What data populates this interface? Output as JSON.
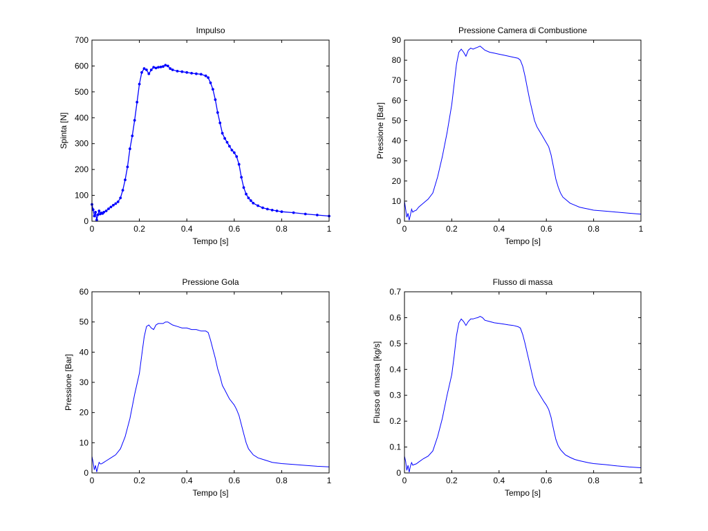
{
  "figure": {
    "background": "#ffffff"
  },
  "chart_data": [
    {
      "type": "line",
      "title": "Impulso",
      "xlabel": "Tempo [s]",
      "ylabel": "Spinta [N]",
      "xlim": [
        0,
        1
      ],
      "ylim": [
        0,
        700
      ],
      "xticks": [
        0,
        0.2,
        0.4,
        0.6,
        0.8,
        1
      ],
      "xtick_labels": [
        "0",
        "0.2",
        "0.4",
        "0.6",
        "0.8",
        "1"
      ],
      "yticks": [
        0,
        100,
        200,
        300,
        400,
        500,
        600,
        700
      ],
      "ytick_labels": [
        "0",
        "100",
        "200",
        "300",
        "400",
        "500",
        "600",
        "700"
      ],
      "markers": true,
      "grid": false,
      "series": [
        {
          "color": "#0000ff",
          "x": [
            0,
            0.005,
            0.01,
            0.015,
            0.02,
            0.025,
            0.03,
            0.035,
            0.04,
            0.045,
            0.05,
            0.06,
            0.07,
            0.08,
            0.09,
            0.1,
            0.11,
            0.12,
            0.13,
            0.14,
            0.15,
            0.16,
            0.17,
            0.18,
            0.19,
            0.2,
            0.21,
            0.22,
            0.23,
            0.24,
            0.25,
            0.26,
            0.27,
            0.28,
            0.29,
            0.3,
            0.31,
            0.32,
            0.33,
            0.34,
            0.36,
            0.38,
            0.4,
            0.42,
            0.44,
            0.46,
            0.48,
            0.49,
            0.5,
            0.51,
            0.52,
            0.53,
            0.54,
            0.55,
            0.56,
            0.57,
            0.58,
            0.59,
            0.6,
            0.61,
            0.62,
            0.63,
            0.64,
            0.65,
            0.66,
            0.67,
            0.68,
            0.7,
            0.72,
            0.74,
            0.76,
            0.78,
            0.8,
            0.85,
            0.9,
            0.95,
            1.0
          ],
          "y": [
            65,
            45,
            20,
            35,
            5,
            25,
            40,
            28,
            32,
            30,
            35,
            40,
            48,
            55,
            62,
            68,
            75,
            90,
            120,
            160,
            210,
            280,
            330,
            390,
            460,
            530,
            575,
            590,
            585,
            570,
            585,
            595,
            592,
            595,
            596,
            598,
            603,
            600,
            590,
            585,
            580,
            578,
            575,
            572,
            570,
            568,
            562,
            555,
            535,
            510,
            470,
            420,
            380,
            340,
            320,
            305,
            290,
            275,
            265,
            250,
            220,
            170,
            130,
            105,
            90,
            80,
            70,
            60,
            52,
            47,
            43,
            40,
            37,
            33,
            28,
            24,
            20
          ]
        }
      ]
    },
    {
      "type": "line",
      "title": "Pressione Camera di Combustione",
      "xlabel": "Tempo [s]",
      "ylabel": "Pressione [Bar]",
      "xlim": [
        0,
        1
      ],
      "ylim": [
        0,
        90
      ],
      "xticks": [
        0,
        0.2,
        0.4,
        0.6,
        0.8,
        1
      ],
      "xtick_labels": [
        "0",
        "0.2",
        "0.4",
        "0.6",
        "0.8",
        "1"
      ],
      "yticks": [
        0,
        10,
        20,
        30,
        40,
        50,
        60,
        70,
        80,
        90
      ],
      "ytick_labels": [
        "0",
        "10",
        "20",
        "30",
        "40",
        "50",
        "60",
        "70",
        "80",
        "90"
      ],
      "markers": false,
      "grid": false,
      "series": [
        {
          "color": "#0000ff",
          "x": [
            0,
            0.005,
            0.01,
            0.015,
            0.02,
            0.025,
            0.03,
            0.035,
            0.04,
            0.05,
            0.06,
            0.08,
            0.1,
            0.12,
            0.14,
            0.16,
            0.18,
            0.2,
            0.21,
            0.22,
            0.23,
            0.24,
            0.25,
            0.26,
            0.27,
            0.28,
            0.29,
            0.3,
            0.31,
            0.32,
            0.33,
            0.34,
            0.36,
            0.38,
            0.4,
            0.42,
            0.44,
            0.46,
            0.48,
            0.49,
            0.5,
            0.51,
            0.52,
            0.53,
            0.54,
            0.55,
            0.56,
            0.57,
            0.58,
            0.59,
            0.6,
            0.61,
            0.62,
            0.63,
            0.64,
            0.65,
            0.66,
            0.67,
            0.68,
            0.7,
            0.72,
            0.74,
            0.76,
            0.78,
            0.8,
            0.85,
            0.9,
            0.95,
            1.0
          ],
          "y": [
            10,
            6,
            2,
            4,
            0.5,
            3,
            6,
            4.5,
            5,
            5.5,
            7,
            9,
            11,
            14,
            22,
            32,
            44,
            58,
            68,
            78,
            84,
            85.5,
            84,
            82,
            85,
            86,
            85.5,
            86,
            86.5,
            87,
            86,
            85,
            84,
            83.5,
            83,
            82.5,
            82,
            81.5,
            81,
            80,
            77,
            72,
            66,
            60,
            55,
            50,
            47,
            45,
            43,
            41,
            39,
            37,
            33,
            27,
            21,
            17,
            14,
            12,
            11,
            9,
            8,
            7,
            6.5,
            6,
            5.5,
            5,
            4.5,
            4,
            3.5
          ]
        }
      ]
    },
    {
      "type": "line",
      "title": "Pressione Gola",
      "xlabel": "Tempo [s]",
      "ylabel": "Pressione [Bar]",
      "xlim": [
        0,
        1
      ],
      "ylim": [
        0,
        60
      ],
      "xticks": [
        0,
        0.2,
        0.4,
        0.6,
        0.8,
        1
      ],
      "xtick_labels": [
        "0",
        "0.2",
        "0.4",
        "0.6",
        "0.8",
        "1"
      ],
      "yticks": [
        0,
        10,
        20,
        30,
        40,
        50,
        60
      ],
      "ytick_labels": [
        "0",
        "10",
        "20",
        "30",
        "40",
        "50",
        "60"
      ],
      "markers": false,
      "grid": false,
      "series": [
        {
          "color": "#0000ff",
          "x": [
            0,
            0.005,
            0.01,
            0.015,
            0.02,
            0.025,
            0.03,
            0.035,
            0.04,
            0.05,
            0.06,
            0.08,
            0.1,
            0.12,
            0.14,
            0.16,
            0.18,
            0.2,
            0.21,
            0.22,
            0.23,
            0.24,
            0.25,
            0.26,
            0.27,
            0.28,
            0.29,
            0.3,
            0.31,
            0.32,
            0.33,
            0.34,
            0.36,
            0.38,
            0.4,
            0.42,
            0.44,
            0.46,
            0.48,
            0.49,
            0.5,
            0.51,
            0.52,
            0.53,
            0.54,
            0.55,
            0.56,
            0.57,
            0.58,
            0.59,
            0.6,
            0.61,
            0.62,
            0.63,
            0.64,
            0.65,
            0.66,
            0.67,
            0.68,
            0.7,
            0.72,
            0.74,
            0.76,
            0.78,
            0.8,
            0.85,
            0.9,
            0.95,
            1.0
          ],
          "y": [
            5.5,
            3.5,
            1,
            2.5,
            0.3,
            2,
            3.5,
            3,
            3,
            3.5,
            4,
            5,
            6,
            8,
            12,
            18,
            26,
            33,
            39,
            45,
            48.5,
            49,
            48,
            47.5,
            49,
            49.5,
            49.5,
            49.5,
            50,
            50,
            49.5,
            49,
            48.5,
            48,
            48,
            47.5,
            47.5,
            47,
            47,
            46.5,
            44,
            41,
            38,
            34.5,
            32,
            29,
            27.5,
            26,
            24.5,
            23.5,
            22.5,
            21,
            19,
            16,
            13,
            10,
            8,
            7,
            6,
            5,
            4.5,
            4,
            3.5,
            3.3,
            3.1,
            2.8,
            2.5,
            2.2,
            2
          ]
        }
      ]
    },
    {
      "type": "line",
      "title": "Flusso di massa",
      "xlabel": "Tempo [s]",
      "ylabel": "Flusso di massa [kg/s]",
      "xlim": [
        0,
        1
      ],
      "ylim": [
        0,
        0.7
      ],
      "xticks": [
        0,
        0.2,
        0.4,
        0.6,
        0.8,
        1
      ],
      "xtick_labels": [
        "0",
        "0.2",
        "0.4",
        "0.6",
        "0.8",
        "1"
      ],
      "yticks": [
        0,
        0.1,
        0.2,
        0.3,
        0.4,
        0.5,
        0.6,
        0.7
      ],
      "ytick_labels": [
        "0",
        "0.1",
        "0.2",
        "0.3",
        "0.4",
        "0.5",
        "0.6",
        "0.7"
      ],
      "markers": false,
      "grid": false,
      "series": [
        {
          "color": "#0000ff",
          "x": [
            0,
            0.005,
            0.01,
            0.015,
            0.02,
            0.025,
            0.03,
            0.035,
            0.04,
            0.05,
            0.06,
            0.08,
            0.1,
            0.12,
            0.14,
            0.16,
            0.18,
            0.2,
            0.21,
            0.22,
            0.23,
            0.24,
            0.25,
            0.26,
            0.27,
            0.28,
            0.29,
            0.3,
            0.31,
            0.32,
            0.33,
            0.34,
            0.36,
            0.38,
            0.4,
            0.42,
            0.44,
            0.46,
            0.48,
            0.49,
            0.5,
            0.51,
            0.52,
            0.53,
            0.54,
            0.55,
            0.56,
            0.57,
            0.58,
            0.59,
            0.6,
            0.61,
            0.62,
            0.63,
            0.64,
            0.65,
            0.66,
            0.67,
            0.68,
            0.7,
            0.72,
            0.74,
            0.76,
            0.78,
            0.8,
            0.85,
            0.9,
            0.95,
            1.0
          ],
          "y": [
            0.065,
            0.045,
            0.01,
            0.03,
            0.003,
            0.025,
            0.04,
            0.03,
            0.032,
            0.035,
            0.042,
            0.055,
            0.065,
            0.085,
            0.14,
            0.21,
            0.3,
            0.38,
            0.45,
            0.53,
            0.58,
            0.595,
            0.585,
            0.57,
            0.585,
            0.595,
            0.595,
            0.598,
            0.6,
            0.605,
            0.6,
            0.59,
            0.585,
            0.58,
            0.578,
            0.575,
            0.572,
            0.57,
            0.565,
            0.56,
            0.535,
            0.5,
            0.46,
            0.42,
            0.38,
            0.34,
            0.32,
            0.305,
            0.29,
            0.275,
            0.262,
            0.245,
            0.215,
            0.17,
            0.13,
            0.105,
            0.09,
            0.08,
            0.07,
            0.06,
            0.052,
            0.047,
            0.043,
            0.039,
            0.036,
            0.032,
            0.027,
            0.023,
            0.02
          ]
        }
      ]
    }
  ]
}
